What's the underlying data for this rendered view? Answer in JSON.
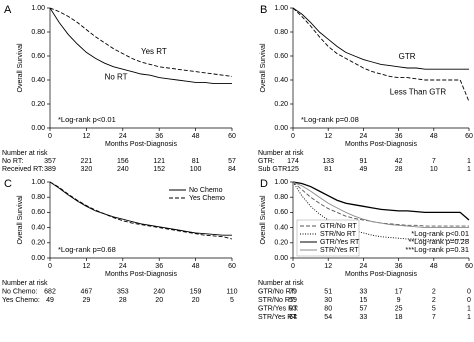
{
  "chart_data": [
    {
      "type": "line",
      "panel": "A",
      "x_label": "Months Post-Diagnosis",
      "y_label": "Overall Survival",
      "x": [
        0,
        3,
        6,
        9,
        12,
        15,
        18,
        21,
        24,
        27,
        30,
        33,
        36,
        39,
        42,
        45,
        48,
        51,
        54,
        57,
        60
      ],
      "series": [
        {
          "name": "No RT",
          "color": "#000000",
          "style": "solid",
          "values": [
            1,
            0.88,
            0.78,
            0.7,
            0.63,
            0.58,
            0.54,
            0.51,
            0.49,
            0.47,
            0.45,
            0.44,
            0.42,
            0.41,
            0.4,
            0.39,
            0.38,
            0.38,
            0.37,
            0.37,
            0.37
          ]
        },
        {
          "name": "Yes RT",
          "color": "#000000",
          "style": "dashed",
          "values": [
            1,
            0.97,
            0.93,
            0.88,
            0.82,
            0.76,
            0.71,
            0.66,
            0.62,
            0.58,
            0.55,
            0.53,
            0.51,
            0.5,
            0.49,
            0.48,
            0.47,
            0.46,
            0.45,
            0.44,
            0.43
          ]
        }
      ],
      "annotations": [
        "*Log-rank p<0.01"
      ],
      "xlim": [
        0,
        60
      ],
      "xticks": [
        0,
        12,
        24,
        36,
        48,
        60
      ],
      "ylim": [
        0,
        1
      ],
      "yticks": [
        {
          "value": 0,
          "label": "0.00"
        },
        {
          "value": 0.2,
          "label": "0.20"
        },
        {
          "value": 0.4,
          "label": "0.40"
        },
        {
          "value": 0.6,
          "label": "0.60"
        },
        {
          "value": 0.8,
          "label": "0.80"
        },
        {
          "value": 1,
          "label": "1.00"
        }
      ],
      "risk_table": {
        "title": "Number at risk",
        "rows": [
          {
            "label": "No RT:",
            "values": [
              "357",
              "221",
              "156",
              "121",
              "81",
              "57"
            ]
          },
          {
            "label": "Received RT:",
            "values": [
              "389",
              "320",
              "240",
              "152",
              "100",
              "84"
            ]
          }
        ]
      }
    },
    {
      "type": "line",
      "panel": "B",
      "x_label": "Months Post-Diagnosis",
      "y_label": "Overall Survival",
      "x": [
        0,
        3,
        6,
        9,
        12,
        15,
        18,
        21,
        24,
        27,
        30,
        33,
        36,
        39,
        42,
        45,
        48,
        51,
        54,
        57,
        60
      ],
      "series": [
        {
          "name": "GTR",
          "color": "#000000",
          "style": "solid",
          "values": [
            1,
            0.95,
            0.88,
            0.8,
            0.74,
            0.68,
            0.63,
            0.6,
            0.57,
            0.55,
            0.53,
            0.52,
            0.51,
            0.5,
            0.5,
            0.49,
            0.49,
            0.49,
            0.49,
            0.49,
            0.49
          ]
        },
        {
          "name": "Less Than GTR",
          "color": "#000000",
          "style": "dashed",
          "values": [
            1,
            0.93,
            0.85,
            0.76,
            0.68,
            0.62,
            0.58,
            0.54,
            0.5,
            0.47,
            0.45,
            0.43,
            0.42,
            0.42,
            0.41,
            0.4,
            0.4,
            0.4,
            0.4,
            0.4,
            0.22
          ]
        }
      ],
      "annotations": [
        "*Log-rank p=0.08"
      ],
      "xlim": [
        0,
        60
      ],
      "xticks": [
        0,
        12,
        24,
        36,
        48,
        60
      ],
      "ylim": [
        0,
        1
      ],
      "yticks": [
        {
          "value": 0,
          "label": "0.00"
        },
        {
          "value": 0.2,
          "label": "0.20"
        },
        {
          "value": 0.4,
          "label": "0.40"
        },
        {
          "value": 0.6,
          "label": "0.60"
        },
        {
          "value": 0.8,
          "label": "0.80"
        },
        {
          "value": 1,
          "label": "1.00"
        }
      ],
      "risk_table": {
        "title": "Number at risk",
        "rows": [
          {
            "label": "GTR:",
            "values": [
              "174",
              "133",
              "91",
              "42",
              "7",
              "1"
            ]
          },
          {
            "label": "Sub GTR:",
            "values": [
              "125",
              "81",
              "49",
              "28",
              "10",
              "1"
            ]
          }
        ]
      }
    },
    {
      "type": "line",
      "panel": "C",
      "x_label": "Months Post-Diagnosis",
      "y_label": "Overall Survival",
      "x": [
        0,
        3,
        6,
        9,
        12,
        15,
        18,
        21,
        24,
        27,
        30,
        33,
        36,
        39,
        42,
        45,
        48,
        51,
        54,
        57,
        60
      ],
      "series": [
        {
          "name": "No Chemo",
          "color": "#000000",
          "style": "solid",
          "values": [
            1,
            0.92,
            0.83,
            0.75,
            0.68,
            0.62,
            0.58,
            0.54,
            0.51,
            0.48,
            0.45,
            0.43,
            0.41,
            0.39,
            0.37,
            0.35,
            0.33,
            0.32,
            0.31,
            0.3,
            0.3
          ]
        },
        {
          "name": "Yes Chemo",
          "color": "#000000",
          "style": "dashed",
          "values": [
            1,
            0.93,
            0.84,
            0.76,
            0.69,
            0.63,
            0.58,
            0.53,
            0.49,
            0.46,
            0.44,
            0.42,
            0.4,
            0.38,
            0.36,
            0.34,
            0.32,
            0.3,
            0.29,
            0.28,
            0.25
          ]
        }
      ],
      "annotations": [
        "*Log-rank p=0.68"
      ],
      "legend": "upper right",
      "xlim": [
        0,
        60
      ],
      "xticks": [
        0,
        12,
        24,
        36,
        48,
        60
      ],
      "ylim": [
        0,
        1
      ],
      "yticks": [
        {
          "value": 0,
          "label": "0.00"
        },
        {
          "value": 0.2,
          "label": "0.20"
        },
        {
          "value": 0.4,
          "label": "0.40"
        },
        {
          "value": 0.6,
          "label": "0.60"
        },
        {
          "value": 0.8,
          "label": "0.80"
        },
        {
          "value": 1,
          "label": "1.00"
        }
      ],
      "risk_table": {
        "title": "Number at risk",
        "rows": [
          {
            "label": "No Chemo:",
            "values": [
              "682",
              "467",
              "353",
              "240",
              "159",
              "110"
            ]
          },
          {
            "label": "Yes Chemo:",
            "values": [
              "49",
              "29",
              "28",
              "20",
              "20",
              "5"
            ]
          }
        ]
      }
    },
    {
      "type": "line",
      "panel": "D",
      "x_label": "Months Post-Diagnosis",
      "y_label": "Overall Survival",
      "x": [
        0,
        3,
        6,
        9,
        12,
        15,
        18,
        21,
        24,
        27,
        30,
        33,
        36,
        39,
        42,
        45,
        48,
        51,
        54,
        57,
        60
      ],
      "series": [
        {
          "name": "GTR/No RT",
          "color": "#555555",
          "style": "dashed",
          "values": [
            1,
            0.9,
            0.8,
            0.72,
            0.65,
            0.6,
            0.55,
            0.52,
            0.5,
            0.48,
            0.46,
            0.45,
            0.44,
            0.43,
            0.43,
            0.42,
            0.42,
            0.42,
            0.42,
            0.42,
            0.42
          ]
        },
        {
          "name": "STR/No RT",
          "color": "#000000",
          "style": "dotted",
          "values": [
            1,
            0.82,
            0.68,
            0.58,
            0.5,
            0.44,
            0.4,
            0.36,
            0.33,
            0.3,
            0.28,
            0.27,
            0.26,
            0.25,
            0.25,
            0.24,
            0.24,
            0.24,
            0.24,
            0.24,
            0.24
          ]
        },
        {
          "name": "GTR/Yes RT",
          "color": "#000000",
          "style": "solid",
          "values": [
            1,
            0.98,
            0.94,
            0.88,
            0.82,
            0.76,
            0.72,
            0.7,
            0.68,
            0.66,
            0.64,
            0.63,
            0.62,
            0.62,
            0.61,
            0.6,
            0.6,
            0.6,
            0.6,
            0.6,
            0.5
          ]
        },
        {
          "name": "STR/Yes RT",
          "color": "#888888",
          "style": "solid",
          "values": [
            1,
            0.95,
            0.88,
            0.8,
            0.72,
            0.66,
            0.6,
            0.55,
            0.51,
            0.48,
            0.46,
            0.44,
            0.43,
            0.42,
            0.41,
            0.4,
            0.4,
            0.4,
            0.4,
            0.4,
            0.4
          ]
        }
      ],
      "annotations": [
        "*Log-rank p<0.01",
        "**Log-rank p=0.28",
        "***Log-rank p=0.31"
      ],
      "legend": "lower left",
      "xlim": [
        0,
        60
      ],
      "xticks": [
        0,
        12,
        24,
        36,
        48,
        60
      ],
      "ylim": [
        0,
        1
      ],
      "yticks": [
        {
          "value": 0,
          "label": "0.00"
        },
        {
          "value": 0.2,
          "label": "0.20"
        },
        {
          "value": 0.4,
          "label": "0.40"
        },
        {
          "value": 0.6,
          "label": "0.60"
        },
        {
          "value": 0.8,
          "label": "0.80"
        },
        {
          "value": 1,
          "label": "1.00"
        }
      ],
      "risk_table": {
        "title": "Number at risk",
        "rows": [
          {
            "label": "GTR/No RT:",
            "values": [
              "79",
              "51",
              "33",
              "17",
              "2",
              "0"
            ]
          },
          {
            "label": "STR/No RT:",
            "values": [
              "59",
              "30",
              "15",
              "9",
              "2",
              "0"
            ]
          },
          {
            "label": "GTR/Yes RT:",
            "values": [
              "93",
              "80",
              "57",
              "25",
              "5",
              "1"
            ]
          },
          {
            "label": "STR/Yes RT:",
            "values": [
              "64",
              "54",
              "33",
              "18",
              "7",
              "1"
            ]
          }
        ]
      }
    }
  ]
}
